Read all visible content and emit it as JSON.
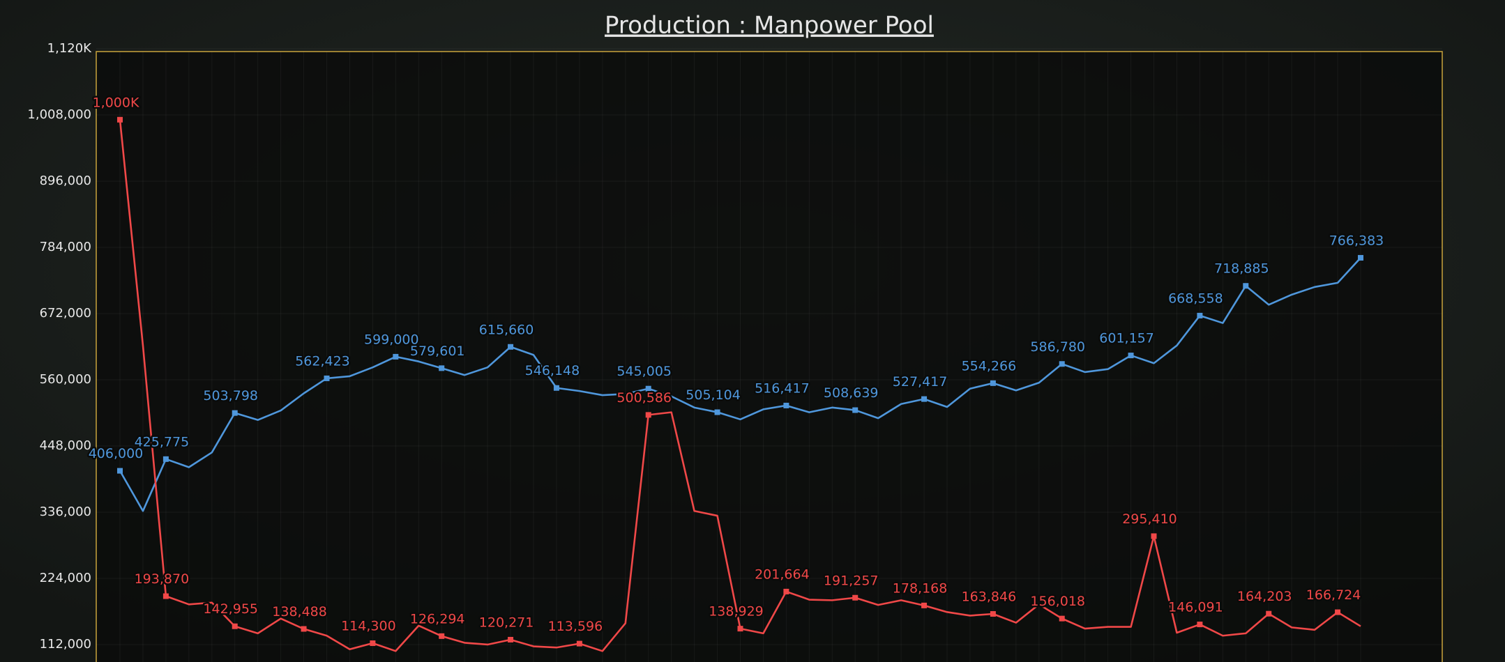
{
  "chart_data": {
    "type": "line",
    "title": "Production : Manpower Pool",
    "categories": [
      null,
      null,
      null,
      null,
      null,
      null,
      null,
      null,
      null,
      null,
      null,
      null,
      null,
      null,
      null,
      null,
      null,
      null,
      null,
      null,
      null,
      null,
      null,
      null,
      null,
      null,
      null,
      null,
      null,
      null,
      null,
      null,
      null,
      null,
      null,
      null,
      null,
      null,
      null,
      null,
      null,
      null,
      null,
      null,
      null,
      null,
      null,
      null,
      null,
      null,
      null,
      null,
      null,
      null,
      null
    ],
    "ylim": [
      82500,
      1120000
    ],
    "yticks": [
      {
        "value": 112000,
        "label": "112,000"
      },
      {
        "value": 224000,
        "label": "224,000"
      },
      {
        "value": 336000,
        "label": "336,000"
      },
      {
        "value": 448000,
        "label": "448,000"
      },
      {
        "value": 560000,
        "label": "560,000"
      },
      {
        "value": 672000,
        "label": "672,000"
      },
      {
        "value": 784000,
        "label": "784,000"
      },
      {
        "value": 896000,
        "label": "896,000"
      },
      {
        "value": 1008000,
        "label": "1,008,000"
      },
      {
        "value": 1120000,
        "label": "1,120K"
      }
    ],
    "grid": true,
    "series": [
      {
        "color": "#4f97dc",
        "values": [
          406000,
          338000,
          425775,
          412000,
          437000,
          503798,
          492000,
          508000,
          537000,
          562423,
          566000,
          581000,
          599000,
          591000,
          579601,
          568000,
          581000,
          615660,
          602000,
          546148,
          541000,
          534000,
          536000,
          545005,
          532000,
          513000,
          505104,
          493000,
          510000,
          516417,
          505000,
          513000,
          508639,
          495000,
          519000,
          527417,
          514000,
          545000,
          554266,
          542000,
          555000,
          586780,
          573000,
          578000,
          601157,
          588000,
          618000,
          668558,
          656000,
          718885,
          687000,
          704000,
          717000,
          724000,
          766383
        ],
        "value_labels": [
          "406,000",
          null,
          "425,775",
          null,
          null,
          "503,798",
          null,
          null,
          null,
          "562,423",
          null,
          null,
          "599,000",
          null,
          "579,601",
          null,
          null,
          "615,660",
          null,
          "546,148",
          null,
          null,
          null,
          "545,005",
          null,
          null,
          "505,104",
          null,
          null,
          "516,417",
          null,
          null,
          "508,639",
          null,
          null,
          "527,417",
          null,
          null,
          "554,266",
          null,
          null,
          "586,780",
          null,
          null,
          "601,157",
          null,
          null,
          "668,558",
          null,
          "718,885",
          null,
          null,
          null,
          null,
          "766,383"
        ]
      },
      {
        "color": "#f04848",
        "values": [
          1000000,
          618000,
          193870,
          180000,
          183000,
          142955,
          131000,
          156000,
          138488,
          127000,
          104000,
          114300,
          101000,
          144000,
          126294,
          115000,
          112000,
          120271,
          109000,
          107000,
          113596,
          101000,
          148000,
          500586,
          505000,
          338000,
          330000,
          138929,
          131000,
          201664,
          188000,
          187000,
          191257,
          179000,
          187000,
          178168,
          167000,
          161000,
          163846,
          149000,
          180000,
          156018,
          139000,
          142000,
          142000,
          295410,
          132000,
          146091,
          127000,
          131000,
          164203,
          141000,
          137000,
          166724,
          143000
        ],
        "value_labels": [
          "1,000K",
          null,
          "193,870",
          null,
          null,
          "142,955",
          null,
          null,
          "138,488",
          null,
          null,
          "114,300",
          null,
          null,
          "126,294",
          null,
          null,
          "120,271",
          null,
          null,
          "113,596",
          null,
          null,
          "500,586",
          null,
          null,
          null,
          "138,929",
          null,
          "201,664",
          null,
          null,
          "191,257",
          null,
          null,
          "178,168",
          null,
          null,
          "163,846",
          null,
          null,
          "156,018",
          null,
          null,
          null,
          "295,410",
          null,
          "146,091",
          null,
          null,
          "164,203",
          null,
          null,
          "166,724",
          null
        ]
      }
    ]
  }
}
